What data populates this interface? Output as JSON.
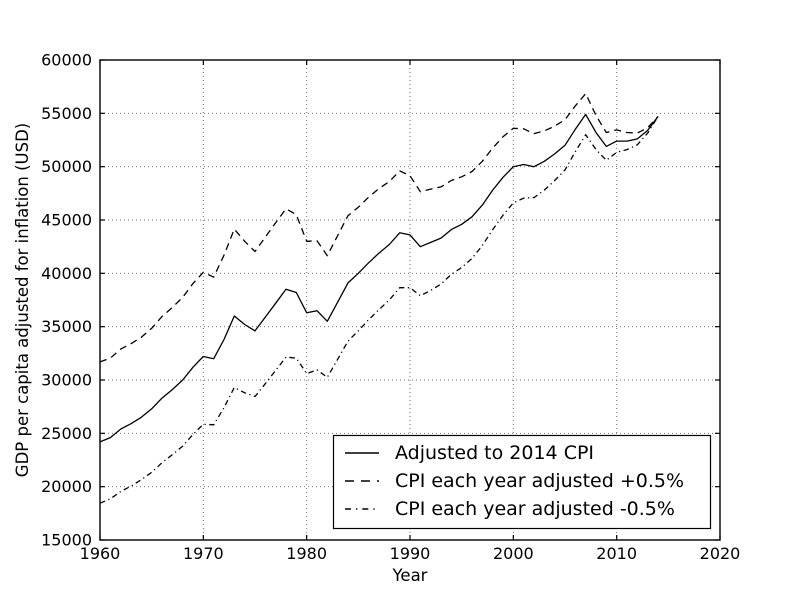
{
  "figure": {
    "background_color": "#ffffff",
    "plot_background_color": "#ffffff",
    "line_color": "#000000",
    "grid_color": "#777777"
  },
  "chart_data": {
    "type": "line",
    "title": "",
    "xlabel": "Year",
    "ylabel": "GDP per capita adjusted for inflation (USD)",
    "xlim": [
      1960,
      2020
    ],
    "ylim": [
      15000,
      60000
    ],
    "xticks": [
      1960,
      1970,
      1980,
      1990,
      2000,
      2010,
      2020
    ],
    "yticks": [
      15000,
      20000,
      25000,
      30000,
      35000,
      40000,
      45000,
      50000,
      55000,
      60000
    ],
    "grid": true,
    "grid_style": "dotted",
    "legend_position": "lower right",
    "x": [
      1960,
      1961,
      1962,
      1963,
      1964,
      1965,
      1966,
      1967,
      1968,
      1969,
      1970,
      1971,
      1972,
      1973,
      1974,
      1975,
      1976,
      1977,
      1978,
      1979,
      1980,
      1981,
      1982,
      1983,
      1984,
      1985,
      1986,
      1987,
      1988,
      1989,
      1990,
      1991,
      1992,
      1993,
      1994,
      1995,
      1996,
      1997,
      1998,
      1999,
      2000,
      2001,
      2002,
      2003,
      2004,
      2005,
      2006,
      2007,
      2008,
      2009,
      2010,
      2011,
      2012,
      2013,
      2014
    ],
    "series": [
      {
        "name": "Adjusted to 2014 CPI",
        "line_style": "solid",
        "values": [
          24200,
          24600,
          25400,
          25900,
          26500,
          27300,
          28300,
          29100,
          30000,
          31200,
          32200,
          32000,
          33800,
          36000,
          35200,
          34600,
          35900,
          37200,
          38500,
          38200,
          36300,
          36500,
          35500,
          37300,
          39100,
          40000,
          41000,
          41900,
          42700,
          43800,
          43600,
          42500,
          42900,
          43300,
          44100,
          44600,
          45300,
          46400,
          47800,
          49000,
          50000,
          50200,
          50000,
          50500,
          51200,
          52000,
          53500,
          54900,
          53200,
          51900,
          52400,
          52400,
          52600,
          53400,
          54700
        ]
      },
      {
        "name": "CPI each year adjusted +0.5%",
        "line_style": "dashed",
        "values": [
          31700,
          32050,
          32900,
          33400,
          34000,
          34850,
          35950,
          36800,
          37750,
          39050,
          40100,
          39650,
          41700,
          44150,
          43000,
          42050,
          43400,
          44750,
          46050,
          45500,
          43000,
          43050,
          41650,
          43550,
          45400,
          46200,
          47150,
          47950,
          48600,
          49600,
          49150,
          47650,
          47900,
          48100,
          48700,
          49050,
          49550,
          50500,
          51750,
          52800,
          53600,
          53550,
          53100,
          53350,
          53800,
          54400,
          55700,
          56850,
          54800,
          53200,
          53450,
          53200,
          53150,
          53650,
          54700
        ]
      },
      {
        "name": "CPI each year adjusted -0.5%",
        "line_style": "dashdot",
        "values": [
          18450,
          18850,
          19550,
          20050,
          20650,
          21350,
          22250,
          23000,
          23800,
          24900,
          25850,
          25800,
          27400,
          29300,
          28800,
          28450,
          29650,
          30900,
          32150,
          32050,
          30600,
          30950,
          30250,
          31950,
          33650,
          34600,
          35650,
          36600,
          37500,
          38650,
          38650,
          37900,
          38400,
          39000,
          39900,
          40550,
          41400,
          42600,
          44100,
          45450,
          46600,
          47050,
          47100,
          47800,
          48700,
          49700,
          51400,
          53000,
          51600,
          50600,
          51350,
          51600,
          52050,
          53150,
          54700
        ]
      }
    ]
  }
}
